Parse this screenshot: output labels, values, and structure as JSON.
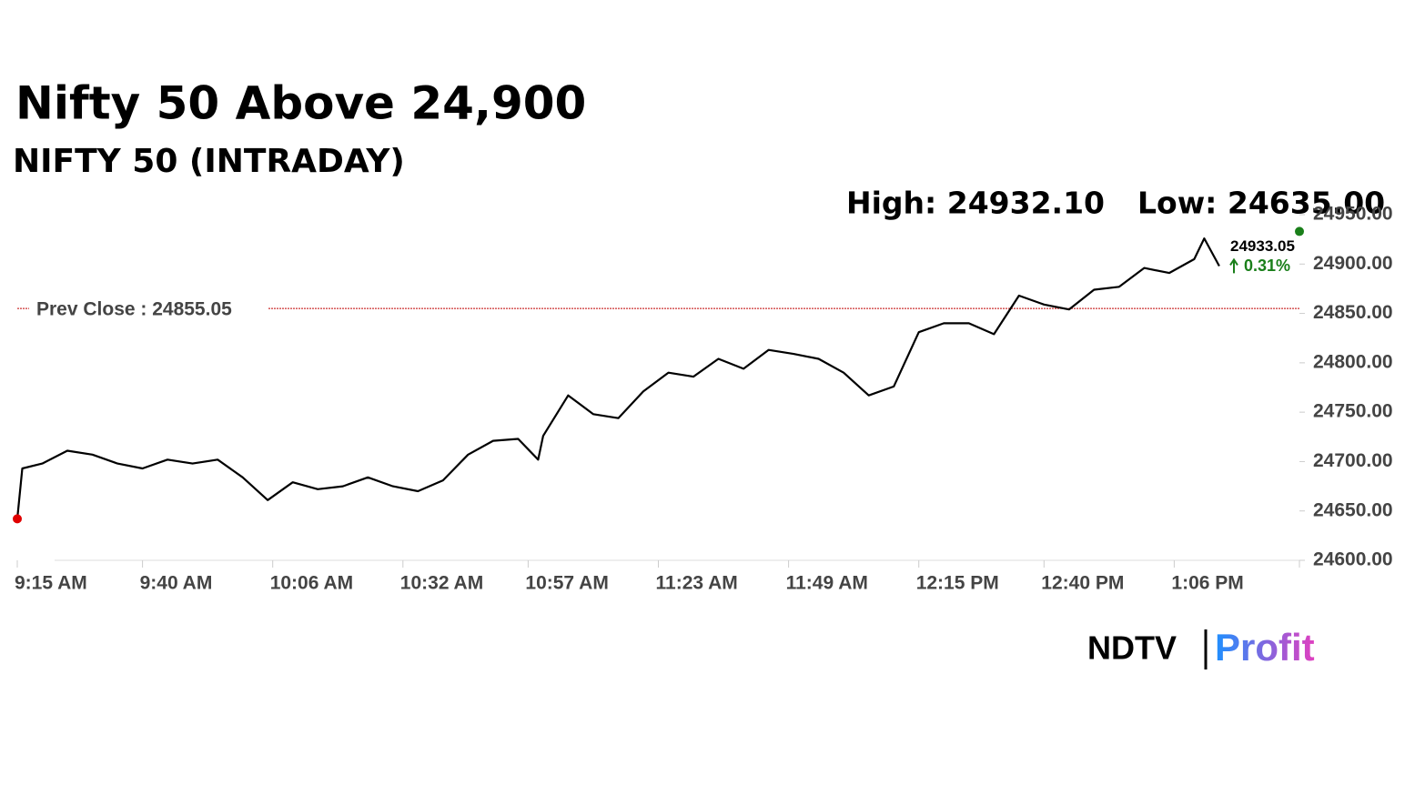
{
  "chart_data": {
    "type": "line",
    "title": "Nifty 50 Above 24,900",
    "subtitle": "NIFTY 50 (INTRADAY)",
    "high_label": "High: 24932.10",
    "low_label": "Low: 24635.00",
    "prev_close": {
      "label": "Prev Close : 24855.05",
      "value": 24855.05,
      "color": "#c00000"
    },
    "last_price": {
      "value": 24933.05,
      "change": "0.31%",
      "color": "#1a7f1a"
    },
    "x": [
      "9:15 AM",
      "9:16 AM",
      "9:20 AM",
      "9:25 AM",
      "9:30 AM",
      "9:35 AM",
      "9:40 AM",
      "9:45 AM",
      "9:50 AM",
      "9:55 AM",
      "10:00 AM",
      "10:05 AM",
      "10:10 AM",
      "10:15 AM",
      "10:20 AM",
      "10:25 AM",
      "10:30 AM",
      "10:35 AM",
      "10:40 AM",
      "10:45 AM",
      "10:50 AM",
      "10:55 AM",
      "10:59 AM",
      "11:00 AM",
      "11:05 AM",
      "11:10 AM",
      "11:15 AM",
      "11:20 AM",
      "11:25 AM",
      "11:30 AM",
      "11:35 AM",
      "11:40 AM",
      "11:45 AM",
      "11:50 AM",
      "11:55 AM",
      "12:00 PM",
      "12:05 PM",
      "12:10 PM",
      "12:15 PM",
      "12:20 PM",
      "12:25 PM",
      "12:30 PM",
      "12:35 PM",
      "12:40 PM",
      "12:45 PM",
      "12:50 PM",
      "12:55 PM",
      "1:00 PM",
      "1:05 PM",
      "1:10 PM",
      "1:12 PM",
      "1:15 PM"
    ],
    "series": [
      {
        "name": "NIFTY 50",
        "color": "#000000",
        "values": [
          24642,
          24693,
          24698,
          24711,
          24707,
          24698,
          24693,
          24702,
          24698,
          24702,
          24684,
          24661,
          24679,
          24672,
          24675,
          24684,
          24675,
          24670,
          24681,
          24707,
          24721,
          24723,
          24702,
          24726,
          24767,
          24748,
          24744,
          24771,
          24790,
          24786,
          24804,
          24794,
          24813,
          24809,
          24804,
          24790,
          24767,
          24776,
          24831,
          24840,
          24840,
          24829,
          24868,
          24859,
          24854,
          24874,
          24877,
          24896,
          24891,
          24905,
          24926,
          24898
        ]
      }
    ],
    "xlim": [
      "9:15 AM",
      "1:31 PM"
    ],
    "xticks": [
      "9:15 AM",
      "9:40 AM",
      "10:06 AM",
      "10:32 AM",
      "10:57 AM",
      "11:23 AM",
      "11:49 AM",
      "12:15 PM",
      "12:40 PM",
      "1:06 PM"
    ],
    "ylim": [
      24600,
      24950
    ],
    "yticks": [
      {
        "value": 24600,
        "label": "24600.00"
      },
      {
        "value": 24650,
        "label": "24650.00"
      },
      {
        "value": 24700,
        "label": "24700.00"
      },
      {
        "value": 24750,
        "label": "24750.00"
      },
      {
        "value": 24800,
        "label": "24800.00"
      },
      {
        "value": 24850,
        "label": "24850.00"
      },
      {
        "value": 24900,
        "label": "24900.00"
      },
      {
        "value": 24950,
        "label": "24950.00"
      }
    ]
  },
  "brand": {
    "left": "NDTV",
    "right": "Profit"
  }
}
